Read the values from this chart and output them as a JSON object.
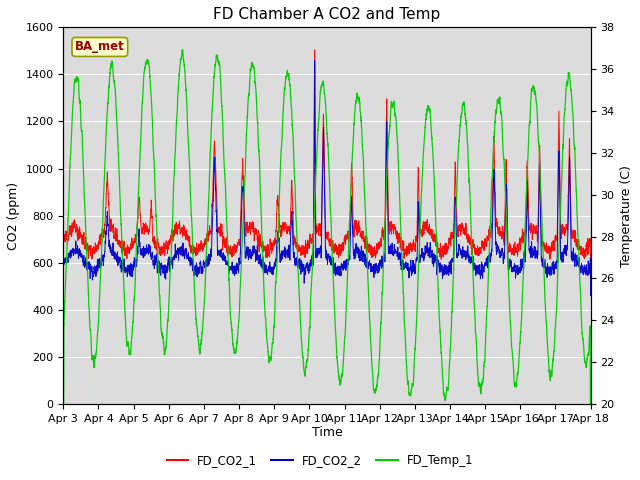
{
  "title": "FD Chamber A CO2 and Temp",
  "xlabel": "Time",
  "ylabel_left": "CO2 (ppm)",
  "ylabel_right": "Temperature (C)",
  "legend_label": "BA_met",
  "series_labels": [
    "FD_CO2_1",
    "FD_CO2_2",
    "FD_Temp_1"
  ],
  "series_colors": [
    "#ff0000",
    "#0000cc",
    "#00cc00"
  ],
  "x_tick_labels": [
    "Apr 3",
    "Apr 4",
    "Apr 5",
    "Apr 6",
    "Apr 7",
    "Apr 8",
    "Apr 9",
    "Apr 10",
    "Apr 11",
    "Apr 12",
    "Apr 13",
    "Apr 14",
    "Apr 15",
    "Apr 16",
    "Apr 17",
    "Apr 18"
  ],
  "ylim_left": [
    0,
    1600
  ],
  "ylim_right": [
    20,
    38
  ],
  "yticks_left": [
    0,
    200,
    400,
    600,
    800,
    1000,
    1200,
    1400,
    1600
  ],
  "yticks_right": [
    20,
    22,
    24,
    26,
    28,
    30,
    32,
    34,
    36,
    38
  ],
  "plot_bg_color": "#dcdcdc",
  "legend_box_facecolor": "#ffffcc",
  "legend_box_edgecolor": "#999900",
  "legend_text_color": "#990000",
  "title_fontsize": 11,
  "axis_label_fontsize": 9,
  "tick_fontsize": 8
}
